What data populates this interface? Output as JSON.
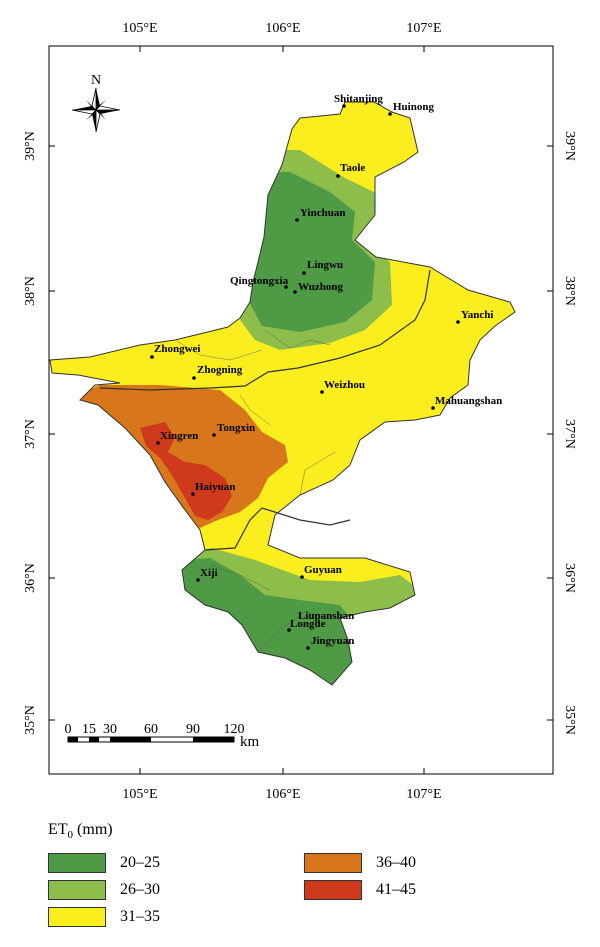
{
  "map": {
    "lon_ticks": [
      "105°E",
      "106°E",
      "107°E"
    ],
    "lat_ticks": [
      "39°N",
      "38°N",
      "37°N",
      "36°N",
      "35°N"
    ],
    "north_label": "N",
    "scale": {
      "ticks": [
        "0",
        "15",
        "30",
        "60",
        "90",
        "120"
      ],
      "unit": "km"
    },
    "cities": [
      {
        "name": "Shitanjing"
      },
      {
        "name": "Huinong"
      },
      {
        "name": "Taole"
      },
      {
        "name": "Yinchuan"
      },
      {
        "name": "Lingwu"
      },
      {
        "name": "Qingtongxia"
      },
      {
        "name": "Wuzhong"
      },
      {
        "name": "Yanchi"
      },
      {
        "name": "Zhongwei"
      },
      {
        "name": "Zhogning"
      },
      {
        "name": "Weizhou"
      },
      {
        "name": "Mahuangshan"
      },
      {
        "name": "Xingren"
      },
      {
        "name": "Tongxin"
      },
      {
        "name": "Haiyuan"
      },
      {
        "name": "Guyuan"
      },
      {
        "name": "Xiji"
      },
      {
        "name": "Liupanshan"
      },
      {
        "name": "Longde"
      },
      {
        "name": "Jingyuan"
      }
    ]
  },
  "legend": {
    "title_main": "ET",
    "title_sub": "0",
    "title_unit": " (mm)",
    "items": [
      {
        "label": "20–25",
        "color": "#4e9a45"
      },
      {
        "label": "26–30",
        "color": "#8dbd4a"
      },
      {
        "label": "31–35",
        "color": "#fbee1f"
      },
      {
        "label": "36–40",
        "color": "#d8761b"
      },
      {
        "label": "41–45",
        "color": "#cf3a1c"
      }
    ]
  }
}
